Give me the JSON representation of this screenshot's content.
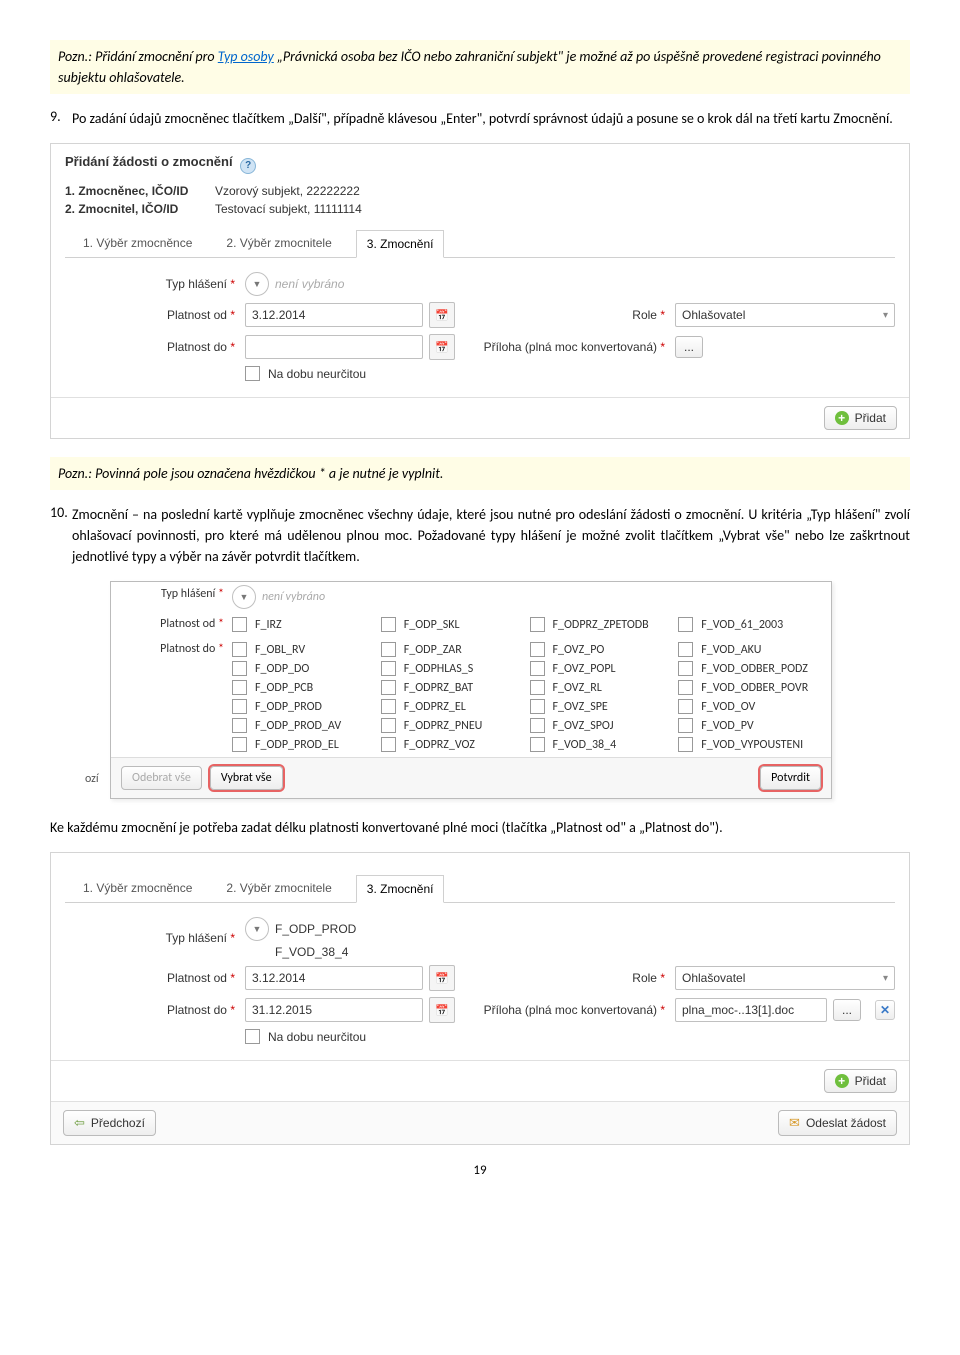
{
  "note1": {
    "prefix": "Pozn.: Přidání zmocnění pro ",
    "link": "Typ osoby",
    "rest": " „Právnická osoba bez IČO nebo zahraniční subjekt\" je možné až po úspěšně provedené registraci povinného subjektu ohlašovatele."
  },
  "para9": {
    "num": "9.",
    "text": "Po zadání údajů zmocněnec tlačítkem „Další\", případně klávesou „Enter\", potvrdí správnost údajů a posune se o krok dál na třetí kartu Zmocnění."
  },
  "ss1": {
    "title": "Přidání žádosti o zmocnění",
    "row1k": "1. Zmocněnec, IČO/ID",
    "row1v": "Vzorový subjekt, 22222222",
    "row2k": "2. Zmocnitel, IČO/ID",
    "row2v": "Testovací subjekt, 11111114",
    "tab1": "1. Výběr zmocněnce",
    "tab2": "2. Výběr zmocnitele",
    "tab3": "3. Zmocnění",
    "typ_label": "Typ hlášení",
    "typ_val": "není vybráno",
    "pl_od_label": "Platnost od",
    "pl_od_val": "3.12.2014",
    "role_label": "Role",
    "role_val": "Ohlašovatel",
    "pl_do_label": "Platnost do",
    "priloha_label": "Příloha (plná moc konvertovaná)",
    "neurcitou": "Na dobu neurčitou",
    "pridat": "Přidat"
  },
  "note2": "Pozn.: Povinná pole jsou označena hvězdičkou * a je nutné je vyplnit.",
  "para10": {
    "num": "10.",
    "text": "Zmocnění – na poslední kartě vyplňuje zmocněnec všechny údaje, které jsou nutné pro odeslání žádosti o zmocnění. U kritéria „Typ hlášení\" zvolí ohlašovací povinnosti, pro které má udělenou plnou moc. Požadované typy hlášení je možné zvolit tlačítkem „Vybrat vše\" nebo lze zaškrtnout jednotlivé typy a výběr na závěr potvrdit tlačítkem."
  },
  "popup": {
    "typ_label": "Typ hlášení",
    "typ_val": "není vybráno",
    "pl_od_label": "Platnost od",
    "pl_do_label": "Platnost do",
    "ozi": "ozí",
    "items": [
      [
        "F_IRZ",
        "F_ODP_SKL",
        "F_ODPRZ_ZPETODB",
        "F_VOD_61_2003"
      ],
      [
        "F_OBL_RV",
        "F_ODP_ZAR",
        "F_OVZ_PO",
        "F_VOD_AKU"
      ],
      [
        "F_ODP_DO",
        "F_ODPHLAS_S",
        "F_OVZ_POPL",
        "F_VOD_ODBER_PODZ"
      ],
      [
        "F_ODP_PCB",
        "F_ODPRZ_BAT",
        "F_OVZ_RL",
        "F_VOD_ODBER_POVR"
      ],
      [
        "F_ODP_PROD",
        "F_ODPRZ_EL",
        "F_OVZ_SPE",
        "F_VOD_OV"
      ],
      [
        "F_ODP_PROD_AV",
        "F_ODPRZ_PNEU",
        "F_OVZ_SPOJ",
        "F_VOD_PV"
      ],
      [
        "F_ODP_PROD_EL",
        "F_ODPRZ_VOZ",
        "F_VOD_38_4",
        "F_VOD_VYPOUSTENI"
      ]
    ],
    "odebrat": "Odebrat vše",
    "vybrat": "Vybrat vše",
    "potvrdit": "Potvrdit"
  },
  "para_after": "Ke každému zmocnění je potřeba zadat délku platnosti konvertované plné moci (tlačítka „Platnost od\" a „Platnost do\").",
  "ss2": {
    "tab1": "1. Výběr zmocněnce",
    "tab2": "2. Výběr zmocnitele",
    "tab3": "3. Zmocnění",
    "typ_label": "Typ hlášení",
    "typ_v1": "F_ODP_PROD",
    "typ_v2": "F_VOD_38_4",
    "pl_od_label": "Platnost od",
    "pl_od_val": "3.12.2014",
    "role_label": "Role",
    "role_val": "Ohlašovatel",
    "pl_do_label": "Platnost do",
    "pl_do_val": "31.12.2015",
    "priloha_label": "Příloha (plná moc konvertovaná)",
    "priloha_file": "plna_moc-..13[1].doc",
    "neurcitou": "Na dobu neurčitou",
    "pridat": "Přidat",
    "prev": "Předchozí",
    "send": "Odeslat žádost"
  },
  "page_number": "19"
}
